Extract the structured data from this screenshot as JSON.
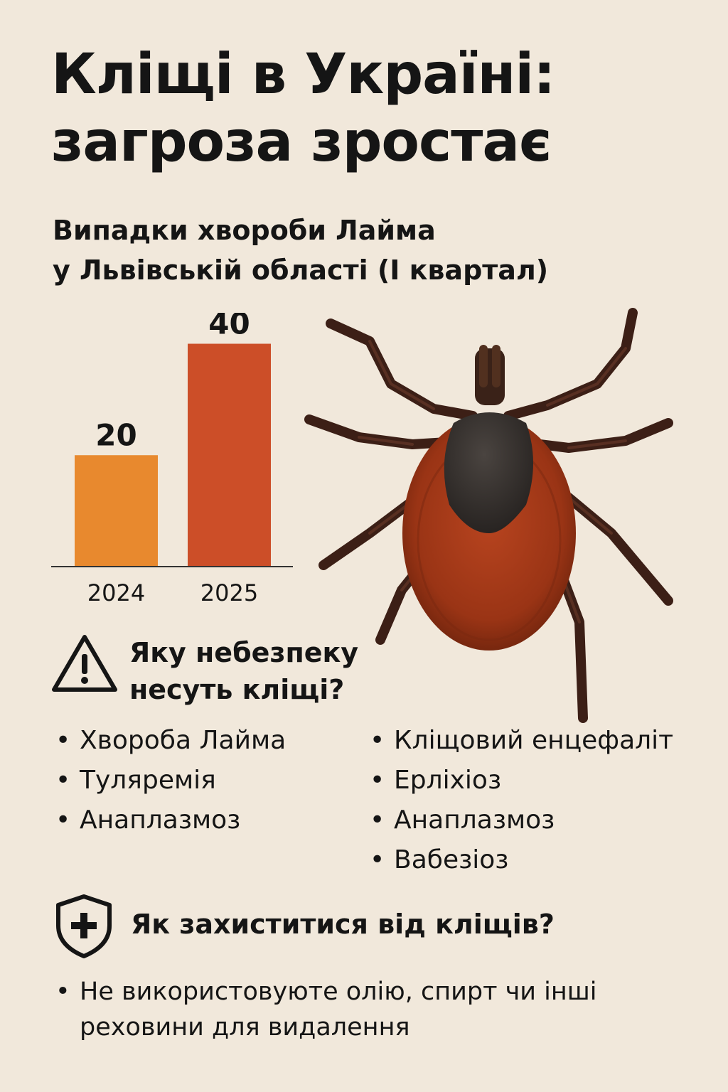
{
  "title": {
    "line1": "Кліщі в Україні:",
    "line2": "загроза зростає"
  },
  "subtitle": {
    "line1": "Випадки хвороби Лайма",
    "line2": "у Львівській області (І квартал)"
  },
  "chart_data": {
    "type": "bar",
    "title": "Випадки хвороби Лайма у Львівській області (І квартал)",
    "categories": [
      "2024",
      "2025"
    ],
    "values": [
      20,
      40
    ],
    "data_labels": [
      "20",
      "40"
    ],
    "colors": [
      "#e8892e",
      "#cc4e28"
    ],
    "ylim": [
      0,
      43
    ],
    "grid": false,
    "legend": "none"
  },
  "danger": {
    "heading_line1": "Яку небезпеку",
    "heading_line2": "несуть кліщі?",
    "icon": "warning-triangle-icon",
    "left": [
      "Хвороба Лайма",
      "Туляремія",
      "Анаплазмоз"
    ],
    "right": [
      "Кліщовий енцефаліт",
      "Ерліхіоз",
      "Анаплазмоз",
      "Вабезіоз"
    ]
  },
  "protect": {
    "heading": "Як захиститися від кліщів?",
    "icon": "shield-plus-icon",
    "tips": [
      "Не використовуюте олію, спирт чи інші реховини для видалення"
    ]
  },
  "illustration": {
    "icon": "tick-icon"
  }
}
